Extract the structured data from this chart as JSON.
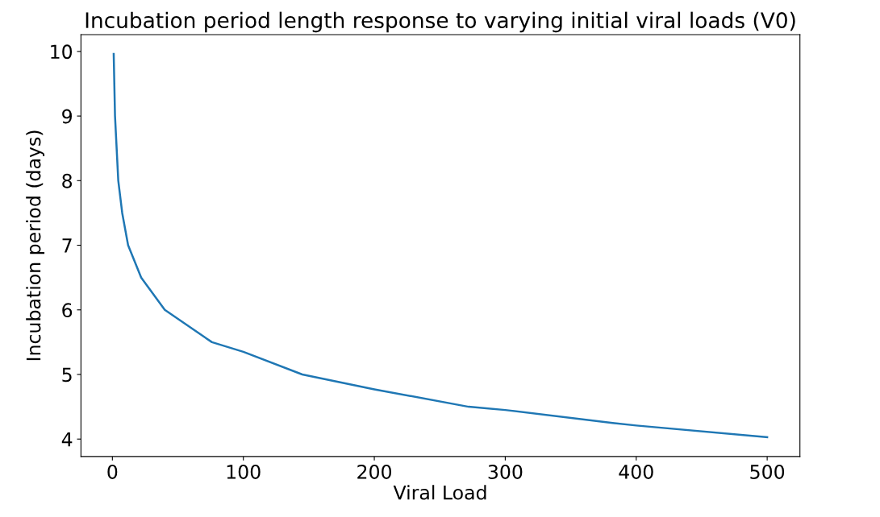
{
  "chart_data": {
    "type": "line",
    "title": "Incubation period length response to varying initial viral loads (V0)",
    "xlabel": "Viral Load",
    "ylabel": "Incubation period (days)",
    "series": [
      {
        "color": "#1f77b4",
        "x": [
          1,
          2,
          4.5,
          7.5,
          12,
          22,
          40,
          76,
          100,
          145,
          200,
          272,
          300,
          382,
          400,
          500
        ],
        "values": [
          9.96,
          9.0,
          8.0,
          7.5,
          7.0,
          6.5,
          6.0,
          5.5,
          5.35,
          5.0,
          4.77,
          4.5,
          4.45,
          4.25,
          4.21,
          4.03
        ]
      }
    ],
    "xlim": [
      -24,
      525
    ],
    "ylim": [
      3.73,
      10.26
    ],
    "xticks": [
      0,
      100,
      200,
      300,
      400,
      500
    ],
    "yticks": [
      4,
      5,
      6,
      7,
      8,
      9,
      10
    ],
    "grid": false,
    "legend": false,
    "line_style": "solid",
    "marker": "none"
  }
}
